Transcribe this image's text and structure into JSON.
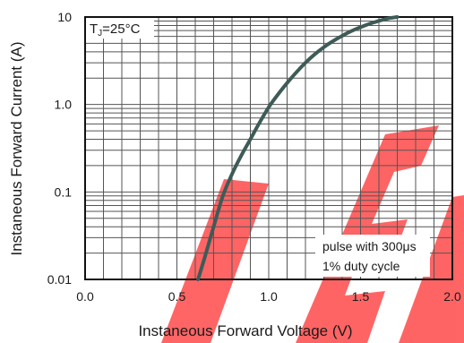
{
  "chart_data": {
    "type": "line",
    "title": "",
    "xlabel": "Instaneous Forward Voltage (V)",
    "ylabel": "Instaneous Forward Current (A)",
    "xscale": "linear",
    "yscale": "log",
    "xlim": [
      0.0,
      2.0
    ],
    "ylim": [
      0.01,
      10
    ],
    "xticks": [
      "0.0",
      "0.5",
      "1.0",
      "1.5",
      "2.0"
    ],
    "yticks": [
      "0.01",
      "0.1",
      "1.0",
      "10"
    ],
    "grid": true,
    "legend": "none",
    "condition_label": "T",
    "condition_subscript": "J",
    "condition_value": "=25°C",
    "annotation_line1": "pulse with 300μs",
    "annotation_line2": "1% duty cycle",
    "series": [
      {
        "color": "#3e5b57",
        "x": [
          0.615,
          0.65,
          0.7,
          0.75,
          0.8,
          0.85,
          0.9,
          0.95,
          1.0,
          1.05,
          1.1,
          1.15,
          1.2,
          1.25,
          1.3,
          1.35,
          1.4,
          1.45,
          1.5,
          1.55,
          1.6,
          1.65,
          1.7
        ],
        "y": [
          0.01,
          0.0175,
          0.04,
          0.09,
          0.16,
          0.26,
          0.4,
          0.62,
          0.93,
          1.3,
          1.76,
          2.33,
          3.0,
          3.74,
          4.52,
          5.3,
          6.1,
          6.9,
          7.65,
          8.38,
          9.03,
          9.62,
          10.0
        ]
      }
    ]
  },
  "watermark_color": "#ff4a4a"
}
